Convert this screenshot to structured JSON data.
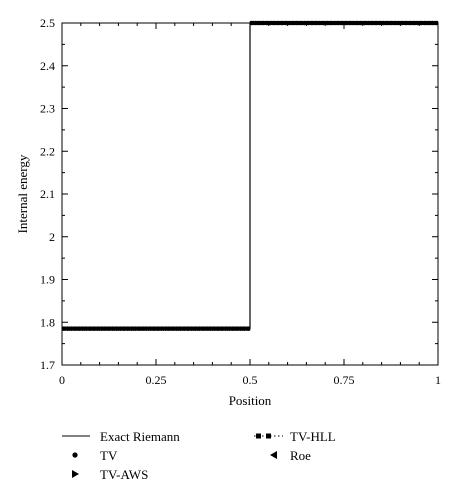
{
  "chart_data": {
    "type": "line",
    "xlabel": "Position",
    "ylabel": "Internal energy",
    "xlim": [
      0,
      1
    ],
    "ylim": [
      1.7,
      2.5
    ],
    "xticks": [
      0,
      0.25,
      0.5,
      0.75,
      1
    ],
    "xtick_labels": [
      "0",
      "0.25",
      "0.5",
      "0.75",
      "1"
    ],
    "yticks": [
      1.7,
      1.8,
      1.9,
      2.0,
      2.1,
      2.2,
      2.3,
      2.4,
      2.5
    ],
    "ytick_labels": [
      "1.7",
      "1.8",
      "1.9",
      "2",
      "2.1",
      "2.2",
      "2.3",
      "2.4",
      "2.5"
    ],
    "grid": false,
    "legend_position": "bottom",
    "series": [
      {
        "name": "Exact Riemann",
        "style": "solid-line",
        "x": [
          0,
          0.5,
          0.5,
          1
        ],
        "y": [
          1.785,
          1.785,
          2.5,
          2.5
        ]
      },
      {
        "name": "TV",
        "marker": "circle",
        "profile": {
          "x_start": 0,
          "x_end": 1,
          "n_points": 100,
          "left_value": 1.785,
          "right_value": 2.5,
          "discontinuity": 0.505
        }
      },
      {
        "name": "TV-HLL",
        "marker": "square-dotted-line",
        "profile": {
          "x_start": 0,
          "x_end": 1,
          "n_points": 100,
          "left_value": 1.785,
          "right_value": 2.5,
          "discontinuity": 0.505
        }
      },
      {
        "name": "TV-AWS",
        "marker": "triangle-right",
        "profile": {
          "x_start": 0,
          "x_end": 1,
          "n_points": 100,
          "left_value": 1.785,
          "right_value": 2.5,
          "discontinuity": 0.505
        }
      },
      {
        "name": "Roe",
        "marker": "triangle-left",
        "profile": {
          "x_start": 0,
          "x_end": 1,
          "n_points": 100,
          "left_value": 1.785,
          "right_value": 2.5,
          "discontinuity": 0.505
        }
      }
    ],
    "colors": {
      "line": "#000000",
      "marker": "#000000",
      "background": "#ffffff"
    }
  }
}
